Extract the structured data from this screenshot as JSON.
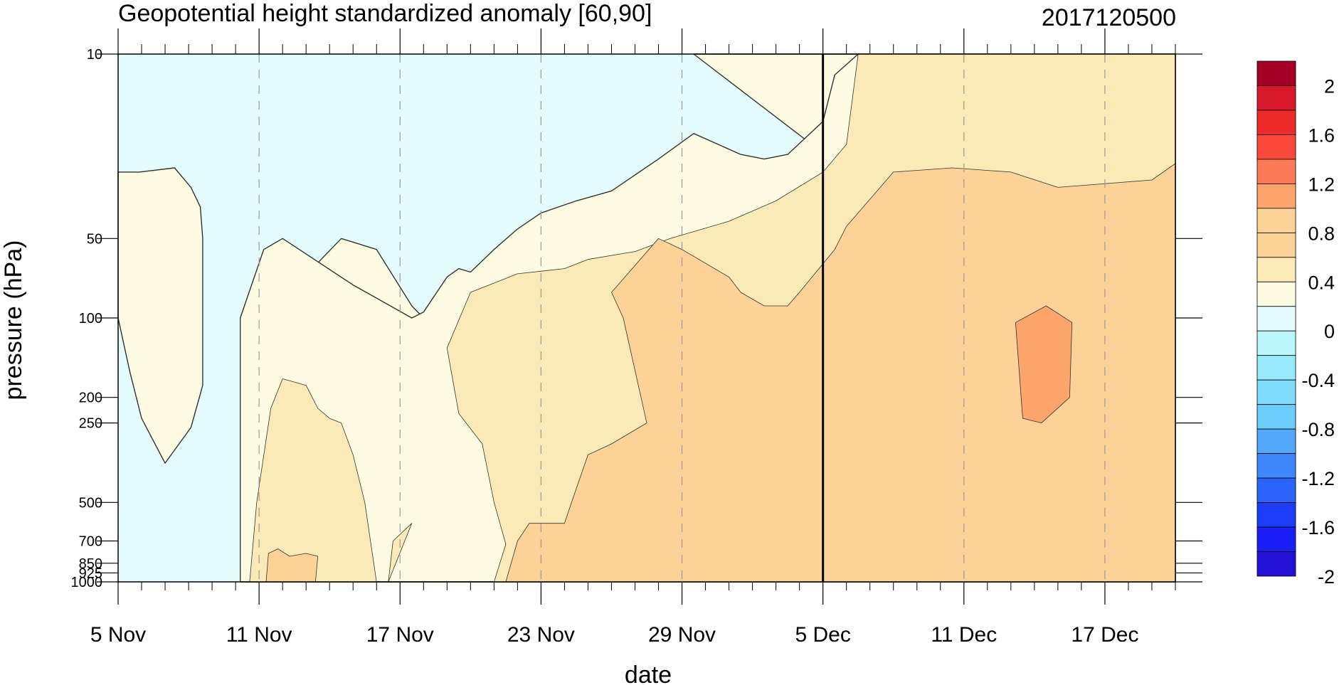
{
  "chart_data": {
    "type": "contour",
    "title": "Geopotential height standardized anomaly [60,90]",
    "title_right": "2017120500",
    "xlabel": "date",
    "ylabel": "pressure (hPa)",
    "x_ticks": [
      "5 Nov",
      "11 Nov",
      "17 Nov",
      "23 Nov",
      "29 Nov",
      "5 Dec",
      "11 Dec",
      "17 Dec"
    ],
    "x_tick_days": [
      0,
      6,
      12,
      18,
      24,
      30,
      36,
      42
    ],
    "x_range_days": [
      0,
      45
    ],
    "x_start_date": "2017-11-05",
    "marked_date": "5 Dec",
    "marked_day": 30,
    "y_ticks": [
      10,
      50,
      100,
      200,
      250,
      500,
      700,
      850,
      925,
      1000
    ],
    "y_range": [
      10,
      1000
    ],
    "y_scale": "log",
    "y_reversed": true,
    "vertical_grid": "dashed",
    "colorbar": {
      "levels": [
        -2,
        -1.8,
        -1.6,
        -1.4,
        -1.2,
        -1,
        -0.8,
        -0.6,
        -0.4,
        -0.2,
        0,
        0.2,
        0.4,
        0.6,
        0.8,
        1,
        1.2,
        1.4,
        1.6,
        1.8,
        2
      ],
      "labels": [
        "2",
        "1.6",
        "1.2",
        "0.8",
        "0.4",
        "0",
        "-0.4",
        "-0.8",
        "-1.2",
        "-1.6",
        "-2"
      ],
      "colors_top_to_bottom": [
        "#a50026",
        "#d7192b",
        "#ec2a2a",
        "#fb4a3c",
        "#fc7a55",
        "#fda56c",
        "#fcd298",
        "#fcd298",
        "#fbeab8",
        "#fefbe3",
        "#e4fcfd",
        "#bcf6fd",
        "#98eafc",
        "#7fdcfc",
        "#6bcdfc",
        "#54a8fc",
        "#3d87fb",
        "#2a64fa",
        "#1d3dfa",
        "#1b1ef8",
        "#2411d8"
      ]
    },
    "level_colors": {
      "-0.8": "#7fdcfc",
      "-0.6": "#98eafc",
      "-0.4": "#bcf6fd",
      "-0.2": "#e4fcfd",
      "0": "#fefbe3",
      "0.2": "#fbeab8",
      "0.4": "#fcd298",
      "0.8": "#fda56c"
    },
    "regions": [
      {
        "level": "-0.2",
        "points": [
          [
            0,
            10
          ],
          [
            45,
            10
          ],
          [
            45,
            1000
          ],
          [
            0,
            1000
          ]
        ]
      },
      {
        "level": "0",
        "points": [
          [
            24.5,
            10
          ],
          [
            45,
            10
          ],
          [
            45,
            1000
          ],
          [
            27.5,
            1000
          ],
          [
            22.5,
            520
          ],
          [
            20,
            250
          ],
          [
            17,
            130
          ],
          [
            14.5,
            95
          ],
          [
            13,
            100
          ],
          [
            12.5,
            90
          ],
          [
            11,
            55
          ],
          [
            9.5,
            50
          ],
          [
            7,
            85
          ],
          [
            5.5,
            1000
          ],
          [
            33,
            1000
          ],
          [
            31.5,
            30
          ]
        ]
      },
      {
        "level": "0",
        "points": [
          [
            0,
            28
          ],
          [
            0.9,
            28
          ],
          [
            2.4,
            27
          ],
          [
            3.1,
            32
          ],
          [
            3.5,
            38
          ],
          [
            3.6,
            50
          ],
          [
            3.6,
            180
          ],
          [
            3.1,
            260
          ],
          [
            2,
            355
          ],
          [
            1,
            240
          ],
          [
            0.5,
            160
          ],
          [
            0,
            100
          ]
        ]
      },
      {
        "level": "0",
        "points": [
          [
            5.2,
            1000
          ],
          [
            5.2,
            100
          ],
          [
            6.2,
            55
          ],
          [
            7,
            50
          ],
          [
            10,
            75
          ],
          [
            12.5,
            100
          ],
          [
            13,
            95
          ],
          [
            14,
            70
          ],
          [
            14.5,
            65
          ],
          [
            15,
            67
          ],
          [
            16,
            55
          ],
          [
            17,
            46
          ],
          [
            18,
            40
          ],
          [
            19.5,
            36
          ],
          [
            21,
            33
          ],
          [
            23,
            25
          ],
          [
            24.5,
            20
          ],
          [
            26.5,
            24
          ],
          [
            27.5,
            25
          ],
          [
            28.5,
            24
          ],
          [
            30,
            18
          ],
          [
            30.5,
            12
          ],
          [
            31.5,
            10
          ],
          [
            45,
            10
          ],
          [
            45,
            1000
          ]
        ]
      },
      {
        "level": "0.2",
        "points": [
          [
            31.5,
            10
          ],
          [
            45,
            10
          ],
          [
            45,
            1000
          ],
          [
            16,
            1000
          ],
          [
            16.5,
            720
          ],
          [
            16,
            500
          ],
          [
            15.5,
            300
          ],
          [
            14.5,
            230
          ],
          [
            14,
            130
          ],
          [
            15,
            80
          ],
          [
            17,
            68
          ],
          [
            19,
            65
          ],
          [
            20,
            60
          ],
          [
            22,
            56
          ],
          [
            23.5,
            50
          ],
          [
            26,
            43
          ],
          [
            28,
            36
          ],
          [
            30,
            28
          ],
          [
            31,
            22
          ]
        ]
      },
      {
        "level": "0.2",
        "points": [
          [
            5.6,
            1000
          ],
          [
            5.9,
            500
          ],
          [
            6.5,
            220
          ],
          [
            7,
            170
          ],
          [
            8,
            180
          ],
          [
            8.5,
            220
          ],
          [
            9,
            240
          ],
          [
            9.5,
            250
          ],
          [
            10,
            330
          ],
          [
            10.5,
            500
          ],
          [
            11,
            1000
          ]
        ]
      },
      {
        "level": "0.2",
        "points": [
          [
            11.5,
            1000
          ],
          [
            11.7,
            700
          ],
          [
            12.5,
            600
          ]
        ]
      },
      {
        "level": "0.4",
        "points": [
          [
            16.5,
            1000
          ],
          [
            17,
            700
          ],
          [
            17.5,
            600
          ],
          [
            19,
            600
          ],
          [
            19.3,
            500
          ],
          [
            20,
            330
          ],
          [
            21,
            300
          ],
          [
            22.5,
            250
          ],
          [
            21.5,
            100
          ],
          [
            21,
            80
          ],
          [
            23,
            50
          ],
          [
            24,
            55
          ],
          [
            26,
            70
          ],
          [
            26.5,
            80
          ],
          [
            27.5,
            90
          ],
          [
            28.5,
            90
          ],
          [
            29,
            80
          ],
          [
            30.5,
            55
          ],
          [
            31,
            45
          ],
          [
            33,
            28
          ],
          [
            35.5,
            27
          ],
          [
            38,
            28
          ],
          [
            40,
            32
          ],
          [
            44,
            30
          ],
          [
            45,
            26
          ],
          [
            45,
            1000
          ]
        ]
      },
      {
        "level": "0.4",
        "points": [
          [
            6.3,
            1000
          ],
          [
            6.4,
            780
          ],
          [
            6.8,
            750
          ],
          [
            7.3,
            800
          ],
          [
            8,
            780
          ],
          [
            8.5,
            800
          ],
          [
            8.4,
            1000
          ]
        ]
      },
      {
        "level": "0.8",
        "points": [
          [
            38.2,
            104
          ],
          [
            39.5,
            90
          ],
          [
            40.6,
            104
          ],
          [
            40.5,
            200
          ],
          [
            39.3,
            250
          ],
          [
            38.5,
            240
          ]
        ]
      }
    ]
  }
}
